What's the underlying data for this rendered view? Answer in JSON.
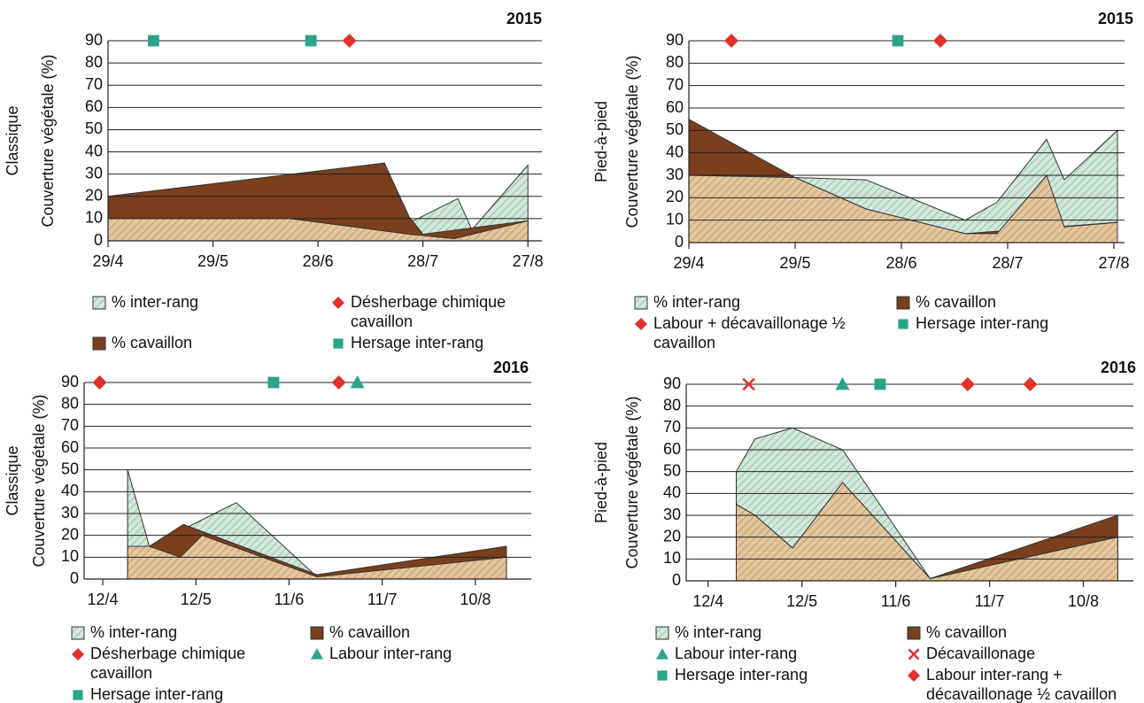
{
  "chart_data": [
    {
      "type": "area",
      "title": "2015",
      "group": "Classique",
      "y_label": "Couverture végétale (%)",
      "xlim": [
        0,
        124
      ],
      "xticks": [
        {
          "value": 0,
          "label": "29/4"
        },
        {
          "value": 30,
          "label": "29/5"
        },
        {
          "value": 60,
          "label": "28/6"
        },
        {
          "value": 90,
          "label": "28/7"
        },
        {
          "value": 120,
          "label": "27/8"
        }
      ],
      "ylim": [
        0,
        90
      ],
      "yticks": [
        0,
        10,
        20,
        30,
        40,
        50,
        60,
        70,
        80,
        90
      ],
      "grid": true,
      "series": [
        {
          "name": "% inter-rang",
          "color": "#cfe9dc",
          "pattern": "hatch",
          "x": [
            0,
            86,
            100,
            104,
            120
          ],
          "values": [
            10,
            8,
            19,
            5,
            34
          ]
        },
        {
          "name": "% cavaillon",
          "color": "#7a3f1d",
          "x": [
            0,
            79,
            86,
            90,
            120
          ],
          "values": [
            20,
            35,
            11,
            3,
            9
          ]
        },
        {
          "color": "#e6c59b",
          "pattern": "hatch",
          "x": [
            0,
            52,
            86,
            99,
            120
          ],
          "values": [
            10,
            10,
            3,
            1,
            9
          ]
        },
        {
          "type": "scatter",
          "name": "Désherbage chimique cavaillon",
          "color": "#e0312b",
          "marker": "diamond",
          "x": [
            69
          ],
          "values": [
            90
          ]
        },
        {
          "type": "scatter",
          "name": "Hersage inter-rang",
          "color": "#2ba58a",
          "marker": "square",
          "x": [
            13,
            58
          ],
          "values": [
            90,
            90
          ]
        }
      ]
    },
    {
      "type": "area",
      "title": "2015",
      "group": "Pied-à-pied",
      "y_label": "Couverture végétale (%)",
      "xlim": [
        0,
        123
      ],
      "xticks": [
        {
          "value": 0,
          "label": "29/4"
        },
        {
          "value": 30,
          "label": "29/5"
        },
        {
          "value": 60,
          "label": "28/6"
        },
        {
          "value": 90,
          "label": "28/7"
        },
        {
          "value": 120,
          "label": "27/8"
        }
      ],
      "ylim": [
        0,
        90
      ],
      "yticks": [
        0,
        10,
        20,
        30,
        40,
        50,
        60,
        70,
        80,
        90
      ],
      "grid": true,
      "series": [
        {
          "name": "% inter-rang",
          "color": "#cfe9dc",
          "pattern": "hatch",
          "x": [
            0,
            30,
            50,
            78,
            87,
            101,
            106,
            121
          ],
          "values": [
            30,
            29,
            28,
            10,
            18,
            46,
            28,
            50
          ]
        },
        {
          "name": "% cavaillon",
          "color": "#7a3f1d",
          "x": [
            0,
            30,
            50,
            78,
            121
          ],
          "values": [
            55,
            29,
            15,
            4,
            9
          ]
        },
        {
          "color": "#e6c59b",
          "pattern": "hatch",
          "x": [
            0,
            30,
            50,
            78,
            87,
            101,
            106,
            121
          ],
          "values": [
            30,
            29,
            15,
            4,
            4,
            30,
            7,
            9
          ]
        },
        {
          "type": "scatter",
          "name": "Labour + décavaillonage ½ cavaillon",
          "color": "#e0312b",
          "marker": "diamond",
          "x": [
            12,
            71
          ],
          "values": [
            90,
            90
          ]
        },
        {
          "type": "scatter",
          "name": "Hersage inter-rang",
          "color": "#2ba58a",
          "marker": "square",
          "x": [
            59
          ],
          "values": [
            90
          ]
        }
      ]
    },
    {
      "type": "area",
      "title": "2016",
      "group": "Classique",
      "y_label": "Couverture végétale (%)",
      "xlim": [
        -6,
        138
      ],
      "xticks": [
        {
          "value": 0,
          "label": "12/4"
        },
        {
          "value": 30,
          "label": "12/5"
        },
        {
          "value": 60,
          "label": "11/6"
        },
        {
          "value": 90,
          "label": "11/7"
        },
        {
          "value": 120,
          "label": "10/8"
        }
      ],
      "ylim": [
        0,
        90
      ],
      "yticks": [
        0,
        10,
        20,
        30,
        40,
        50,
        60,
        70,
        80,
        90
      ],
      "grid": true,
      "series": [
        {
          "name": "% inter-rang",
          "color": "#cfe9dc",
          "pattern": "hatch",
          "x": [
            8,
            15,
            43,
            69,
            130
          ],
          "values": [
            50,
            15,
            35,
            1,
            10
          ]
        },
        {
          "name": "% cavaillon",
          "color": "#7a3f1d",
          "x": [
            8,
            15,
            26,
            69,
            130
          ],
          "values": [
            15,
            15,
            25,
            2,
            15
          ]
        },
        {
          "color": "#e6c59b",
          "pattern": "hatch",
          "x": [
            8,
            15,
            25,
            32,
            69,
            130
          ],
          "values": [
            15,
            15,
            10,
            20,
            1,
            10
          ]
        },
        {
          "type": "scatter",
          "name": "Désherbage chimique cavaillon",
          "color": "#e0312b",
          "marker": "diamond",
          "x": [
            -1,
            76
          ],
          "values": [
            90,
            90
          ]
        },
        {
          "type": "scatter",
          "name": "Labour inter-rang",
          "color": "#2ba58a",
          "marker": "triangle",
          "x": [
            82
          ],
          "values": [
            90
          ]
        },
        {
          "type": "scatter",
          "name": "Hersage inter-rang",
          "color": "#2ba58a",
          "marker": "square",
          "x": [
            55
          ],
          "values": [
            90
          ]
        }
      ]
    },
    {
      "type": "area",
      "title": "2016",
      "group": "Pied-à-pied",
      "y_label": "Couverture végétale (%)",
      "xlim": [
        -7,
        136
      ],
      "xticks": [
        {
          "value": 0,
          "label": "12/4"
        },
        {
          "value": 30,
          "label": "12/5"
        },
        {
          "value": 60,
          "label": "11/6"
        },
        {
          "value": 90,
          "label": "11/7"
        },
        {
          "value": 120,
          "label": "10/8"
        }
      ],
      "ylim": [
        0,
        90
      ],
      "yticks": [
        0,
        10,
        20,
        30,
        40,
        50,
        60,
        70,
        80,
        90
      ],
      "grid": true,
      "series": [
        {
          "name": "% inter-rang",
          "color": "#cfe9dc",
          "pattern": "hatch",
          "x": [
            9,
            15,
            27,
            43,
            71,
            131
          ],
          "values": [
            50,
            65,
            70,
            60,
            1,
            20
          ]
        },
        {
          "name": "% cavaillon",
          "color": "#7a3f1d",
          "x": [
            9,
            15,
            27,
            43,
            71,
            131
          ],
          "values": [
            35,
            30,
            15,
            45,
            1,
            30
          ]
        },
        {
          "color": "#e6c59b",
          "pattern": "hatch",
          "x": [
            9,
            15,
            27,
            43,
            71,
            131
          ],
          "values": [
            35,
            30,
            15,
            45,
            1,
            20
          ]
        },
        {
          "type": "scatter",
          "name": "Labour inter-rang",
          "color": "#2ba58a",
          "marker": "triangle",
          "x": [
            43
          ],
          "values": [
            90
          ]
        },
        {
          "type": "scatter",
          "name": "Décavaillonage",
          "color": "#e0312b",
          "marker": "x",
          "x": [
            13
          ],
          "values": [
            90
          ]
        },
        {
          "type": "scatter",
          "name": "Hersage inter-rang",
          "color": "#2ba58a",
          "marker": "square",
          "x": [
            55
          ],
          "values": [
            90
          ]
        },
        {
          "type": "scatter",
          "name": "Labour inter-rang + décavaillonage ½ cavaillon",
          "color": "#e0312b",
          "marker": "diamond",
          "x": [
            83,
            103
          ],
          "values": [
            90,
            90
          ]
        }
      ]
    }
  ]
}
